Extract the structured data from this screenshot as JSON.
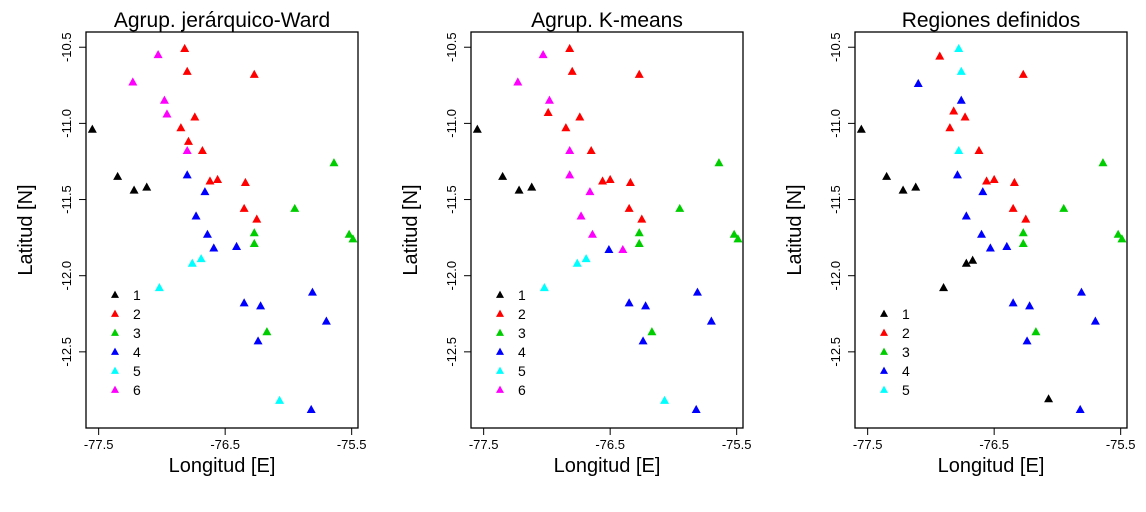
{
  "series_colors": {
    "1": "#000000",
    "2": "#ff0000",
    "3": "#00cd00",
    "4": "#0000ff",
    "5": "#00ffff",
    "6": "#ff00ff"
  },
  "chart_data": [
    {
      "type": "scatter",
      "title": "Agrup. jerárquico-Ward",
      "xlabel": "Longitud [E]",
      "ylabel": "Latitud [N]",
      "xlim": [
        -77.6,
        -75.45
      ],
      "ylim": [
        -13.0,
        -10.4
      ],
      "x_ticks": [
        -77.5,
        -76.5,
        -75.5
      ],
      "x_tick_labels": [
        "-77.5",
        "-76.5",
        "-75.5"
      ],
      "y_ticks": [
        -10.5,
        -11.0,
        -11.5,
        -12.0,
        -12.5
      ],
      "y_tick_labels": [
        "-10.5",
        "-11.0",
        "-11.5",
        "-12.0",
        "-12.5"
      ],
      "grid": false,
      "legend_position": "bottom-left",
      "series": [
        {
          "name": "1",
          "points": [
            [
              -77.55,
              -11.04
            ],
            [
              -77.35,
              -11.35
            ],
            [
              -77.22,
              -11.44
            ],
            [
              -77.12,
              -11.42
            ]
          ]
        },
        {
          "name": "2",
          "points": [
            [
              -76.82,
              -10.51
            ],
            [
              -76.8,
              -10.66
            ],
            [
              -76.74,
              -10.96
            ],
            [
              -76.85,
              -11.03
            ],
            [
              -76.79,
              -11.12
            ],
            [
              -76.68,
              -11.18
            ],
            [
              -76.62,
              -11.38
            ],
            [
              -76.56,
              -11.37
            ],
            [
              -76.34,
              -11.39
            ],
            [
              -76.35,
              -11.56
            ],
            [
              -76.25,
              -11.63
            ],
            [
              -76.27,
              -10.68
            ]
          ]
        },
        {
          "name": "3",
          "points": [
            [
              -75.64,
              -11.26
            ],
            [
              -75.95,
              -11.56
            ],
            [
              -76.27,
              -11.72
            ],
            [
              -76.27,
              -11.79
            ],
            [
              -75.52,
              -11.73
            ],
            [
              -75.49,
              -11.76
            ],
            [
              -76.17,
              -12.37
            ]
          ]
        },
        {
          "name": "4",
          "points": [
            [
              -76.8,
              -11.34
            ],
            [
              -76.66,
              -11.45
            ],
            [
              -76.73,
              -11.61
            ],
            [
              -76.64,
              -11.73
            ],
            [
              -76.59,
              -11.82
            ],
            [
              -76.41,
              -11.81
            ],
            [
              -76.35,
              -12.18
            ],
            [
              -76.22,
              -12.2
            ],
            [
              -75.81,
              -12.11
            ],
            [
              -75.7,
              -12.3
            ],
            [
              -76.24,
              -12.43
            ],
            [
              -75.82,
              -12.88
            ]
          ]
        },
        {
          "name": "5",
          "points": [
            [
              -77.02,
              -12.08
            ],
            [
              -76.76,
              -11.92
            ],
            [
              -76.69,
              -11.89
            ],
            [
              -76.07,
              -12.82
            ]
          ]
        },
        {
          "name": "6",
          "points": [
            [
              -77.23,
              -10.73
            ],
            [
              -77.03,
              -10.55
            ],
            [
              -76.98,
              -10.85
            ],
            [
              -76.96,
              -10.94
            ],
            [
              -76.8,
              -11.18
            ]
          ]
        }
      ]
    },
    {
      "type": "scatter",
      "title": "Agrup. K-means",
      "xlabel": "Longitud [E]",
      "ylabel": "Latitud [N]",
      "xlim": [
        -77.6,
        -75.45
      ],
      "ylim": [
        -13.0,
        -10.4
      ],
      "x_ticks": [
        -77.5,
        -76.5,
        -75.5
      ],
      "x_tick_labels": [
        "-77.5",
        "-76.5",
        "-75.5"
      ],
      "y_ticks": [
        -10.5,
        -11.0,
        -11.5,
        -12.0,
        -12.5
      ],
      "y_tick_labels": [
        "-10.5",
        "-11.0",
        "-11.5",
        "-12.0",
        "-12.5"
      ],
      "grid": false,
      "legend_position": "bottom-left",
      "series": [
        {
          "name": "1",
          "points": [
            [
              -77.55,
              -11.04
            ],
            [
              -77.35,
              -11.35
            ],
            [
              -77.22,
              -11.44
            ],
            [
              -77.12,
              -11.42
            ]
          ]
        },
        {
          "name": "2",
          "points": [
            [
              -76.82,
              -10.51
            ],
            [
              -76.8,
              -10.66
            ],
            [
              -76.74,
              -10.96
            ],
            [
              -76.85,
              -11.03
            ],
            [
              -76.99,
              -10.93
            ],
            [
              -76.65,
              -11.18
            ],
            [
              -76.56,
              -11.38
            ],
            [
              -76.5,
              -11.37
            ],
            [
              -76.34,
              -11.39
            ],
            [
              -76.35,
              -11.56
            ],
            [
              -76.25,
              -11.63
            ],
            [
              -76.27,
              -10.68
            ]
          ]
        },
        {
          "name": "3",
          "points": [
            [
              -75.64,
              -11.26
            ],
            [
              -75.95,
              -11.56
            ],
            [
              -76.27,
              -11.72
            ],
            [
              -76.27,
              -11.79
            ],
            [
              -75.52,
              -11.73
            ],
            [
              -75.49,
              -11.76
            ],
            [
              -76.17,
              -12.37
            ]
          ]
        },
        {
          "name": "4",
          "points": [
            [
              -76.51,
              -11.83
            ],
            [
              -76.35,
              -12.18
            ],
            [
              -76.22,
              -12.2
            ],
            [
              -75.81,
              -12.11
            ],
            [
              -75.7,
              -12.3
            ],
            [
              -76.24,
              -12.43
            ],
            [
              -75.82,
              -12.88
            ]
          ]
        },
        {
          "name": "5",
          "points": [
            [
              -77.02,
              -12.08
            ],
            [
              -76.76,
              -11.92
            ],
            [
              -76.69,
              -11.89
            ],
            [
              -76.07,
              -12.82
            ]
          ]
        },
        {
          "name": "6",
          "points": [
            [
              -77.23,
              -10.73
            ],
            [
              -77.03,
              -10.55
            ],
            [
              -76.98,
              -10.85
            ],
            [
              -76.82,
              -11.18
            ],
            [
              -76.82,
              -11.34
            ],
            [
              -76.66,
              -11.45
            ],
            [
              -76.73,
              -11.61
            ],
            [
              -76.64,
              -11.73
            ],
            [
              -76.4,
              -11.83
            ]
          ]
        }
      ]
    },
    {
      "type": "scatter",
      "title": "Regiones definidos",
      "xlabel": "Longitud [E]",
      "ylabel": "Latitud [N]",
      "xlim": [
        -77.6,
        -75.45
      ],
      "ylim": [
        -13.0,
        -10.4
      ],
      "x_ticks": [
        -77.5,
        -76.5,
        -75.5
      ],
      "x_tick_labels": [
        "-77.5",
        "-76.5",
        "-75.5"
      ],
      "y_ticks": [
        -10.5,
        -11.0,
        -11.5,
        -12.0,
        -12.5
      ],
      "y_tick_labels": [
        "-10.5",
        "-11.0",
        "-11.5",
        "-12.0",
        "-12.5"
      ],
      "grid": false,
      "legend_position": "bottom-left",
      "series": [
        {
          "name": "1",
          "points": [
            [
              -77.55,
              -11.04
            ],
            [
              -77.35,
              -11.35
            ],
            [
              -77.22,
              -11.44
            ],
            [
              -77.12,
              -11.42
            ],
            [
              -76.9,
              -12.08
            ],
            [
              -76.72,
              -11.92
            ],
            [
              -76.67,
              -11.9
            ],
            [
              -76.07,
              -12.81
            ]
          ]
        },
        {
          "name": "2",
          "points": [
            [
              -76.93,
              -10.56
            ],
            [
              -76.73,
              -10.96
            ],
            [
              -76.82,
              -10.92
            ],
            [
              -76.85,
              -11.03
            ],
            [
              -76.62,
              -11.18
            ],
            [
              -76.56,
              -11.38
            ],
            [
              -76.5,
              -11.37
            ],
            [
              -76.34,
              -11.39
            ],
            [
              -76.35,
              -11.56
            ],
            [
              -76.25,
              -11.63
            ],
            [
              -76.27,
              -10.68
            ]
          ]
        },
        {
          "name": "3",
          "points": [
            [
              -75.64,
              -11.26
            ],
            [
              -75.95,
              -11.56
            ],
            [
              -76.27,
              -11.72
            ],
            [
              -76.27,
              -11.79
            ],
            [
              -75.52,
              -11.73
            ],
            [
              -75.49,
              -11.76
            ],
            [
              -76.17,
              -12.37
            ]
          ]
        },
        {
          "name": "4",
          "points": [
            [
              -77.1,
              -10.74
            ],
            [
              -76.76,
              -10.85
            ],
            [
              -76.79,
              -11.34
            ],
            [
              -76.59,
              -11.45
            ],
            [
              -76.72,
              -11.61
            ],
            [
              -76.6,
              -11.73
            ],
            [
              -76.53,
              -11.82
            ],
            [
              -76.4,
              -11.81
            ],
            [
              -76.35,
              -12.18
            ],
            [
              -76.22,
              -12.2
            ],
            [
              -75.81,
              -12.11
            ],
            [
              -75.7,
              -12.3
            ],
            [
              -76.24,
              -12.43
            ],
            [
              -75.82,
              -12.88
            ]
          ]
        },
        {
          "name": "5",
          "points": [
            [
              -76.78,
              -10.51
            ],
            [
              -76.76,
              -10.66
            ],
            [
              -76.78,
              -11.18
            ]
          ]
        }
      ]
    }
  ]
}
